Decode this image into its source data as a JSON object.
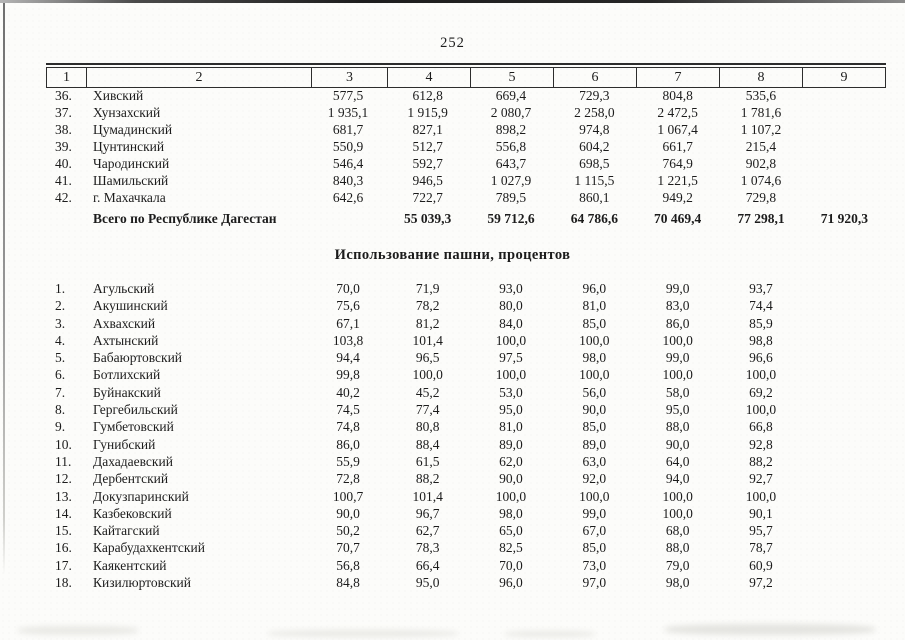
{
  "page": {
    "number": "252"
  },
  "colors": {
    "ink": "#1c1c1c",
    "paper": "#fcfcfa",
    "rule": "#2d2d2d"
  },
  "header_row": {
    "columns": [
      "1",
      "2",
      "3",
      "4",
      "5",
      "6",
      "7",
      "8",
      "9"
    ]
  },
  "upper_table": {
    "rows": [
      {
        "num": "36.",
        "name": "Хивский",
        "values": [
          "577,5",
          "612,8",
          "669,4",
          "729,3",
          "804,8",
          "535,6"
        ]
      },
      {
        "num": "37.",
        "name": "Хунзахский",
        "values": [
          "1 935,1",
          "1 915,9",
          "2 080,7",
          "2 258,0",
          "2 472,5",
          "1 781,6"
        ]
      },
      {
        "num": "38.",
        "name": "Цумадинский",
        "values": [
          "681,7",
          "827,1",
          "898,2",
          "974,8",
          "1 067,4",
          "1 107,2"
        ]
      },
      {
        "num": "39.",
        "name": "Цунтинский",
        "values": [
          "550,9",
          "512,7",
          "556,8",
          "604,2",
          "661,7",
          "215,4"
        ]
      },
      {
        "num": "40.",
        "name": "Чародинский",
        "values": [
          "546,4",
          "592,7",
          "643,7",
          "698,5",
          "764,9",
          "902,8"
        ]
      },
      {
        "num": "41.",
        "name": "Шамильский",
        "values": [
          "840,3",
          "946,5",
          "1 027,9",
          "1 115,5",
          "1 221,5",
          "1 074,6"
        ]
      },
      {
        "num": "42.",
        "name": "г. Махачкала",
        "values": [
          "642,6",
          "722,7",
          "789,5",
          "860,1",
          "949,2",
          "729,8"
        ]
      }
    ],
    "total": {
      "label": "Всего по Республике Дагестан",
      "values": [
        "55 039,3",
        "59 712,6",
        "64 786,6",
        "70 469,4",
        "77 298,1",
        "71 920,3"
      ]
    }
  },
  "section_title": "Использование пашни, процентов",
  "lower_table": {
    "rows": [
      {
        "num": "1.",
        "name": "Агульский",
        "values": [
          "70,0",
          "71,9",
          "93,0",
          "96,0",
          "99,0",
          "93,7"
        ]
      },
      {
        "num": "2.",
        "name": "Акушинский",
        "values": [
          "75,6",
          "78,2",
          "80,0",
          "81,0",
          "83,0",
          "74,4"
        ]
      },
      {
        "num": "3.",
        "name": "Ахвахский",
        "values": [
          "67,1",
          "81,2",
          "84,0",
          "85,0",
          "86,0",
          "85,9"
        ]
      },
      {
        "num": "4.",
        "name": "Ахтынский",
        "values": [
          "103,8",
          "101,4",
          "100,0",
          "100,0",
          "100,0",
          "98,8"
        ]
      },
      {
        "num": "5.",
        "name": "Бабаюртовский",
        "values": [
          "94,4",
          "96,5",
          "97,5",
          "98,0",
          "99,0",
          "96,6"
        ]
      },
      {
        "num": "6.",
        "name": "Ботлихский",
        "values": [
          "99,8",
          "100,0",
          "100,0",
          "100,0",
          "100,0",
          "100,0"
        ]
      },
      {
        "num": "7.",
        "name": "Буйнакский",
        "values": [
          "40,2",
          "45,2",
          "53,0",
          "56,0",
          "58,0",
          "69,2"
        ]
      },
      {
        "num": "8.",
        "name": "Гергебильский",
        "values": [
          "74,5",
          "77,4",
          "95,0",
          "90,0",
          "95,0",
          "100,0"
        ]
      },
      {
        "num": "9.",
        "name": "Гумбетовский",
        "values": [
          "74,8",
          "80,8",
          "81,0",
          "85,0",
          "88,0",
          "66,8"
        ]
      },
      {
        "num": "10.",
        "name": "Гунибский",
        "values": [
          "86,0",
          "88,4",
          "89,0",
          "89,0",
          "90,0",
          "92,8"
        ]
      },
      {
        "num": "11.",
        "name": "Дахадаевский",
        "values": [
          "55,9",
          "61,5",
          "62,0",
          "63,0",
          "64,0",
          "88,2"
        ]
      },
      {
        "num": "12.",
        "name": "Дербентский",
        "values": [
          "72,8",
          "88,2",
          "90,0",
          "92,0",
          "94,0",
          "92,7"
        ]
      },
      {
        "num": "13.",
        "name": "Докузпаринский",
        "values": [
          "100,7",
          "101,4",
          "100,0",
          "100,0",
          "100,0",
          "100,0"
        ]
      },
      {
        "num": "14.",
        "name": "Казбековский",
        "values": [
          "90,0",
          "96,7",
          "98,0",
          "99,0",
          "100,0",
          "90,1"
        ]
      },
      {
        "num": "15.",
        "name": "Кайтагский",
        "values": [
          "50,2",
          "62,7",
          "65,0",
          "67,0",
          "68,0",
          "95,7"
        ]
      },
      {
        "num": "16.",
        "name": "Карабудахкентский",
        "values": [
          "70,7",
          "78,3",
          "82,5",
          "85,0",
          "88,0",
          "78,7"
        ]
      },
      {
        "num": "17.",
        "name": "Каякентский",
        "values": [
          "56,8",
          "66,4",
          "70,0",
          "73,0",
          "79,0",
          "60,9"
        ]
      },
      {
        "num": "18.",
        "name": "Кизилюртовский",
        "values": [
          "84,8",
          "95,0",
          "96,0",
          "97,0",
          "98,0",
          "97,2"
        ]
      }
    ]
  }
}
